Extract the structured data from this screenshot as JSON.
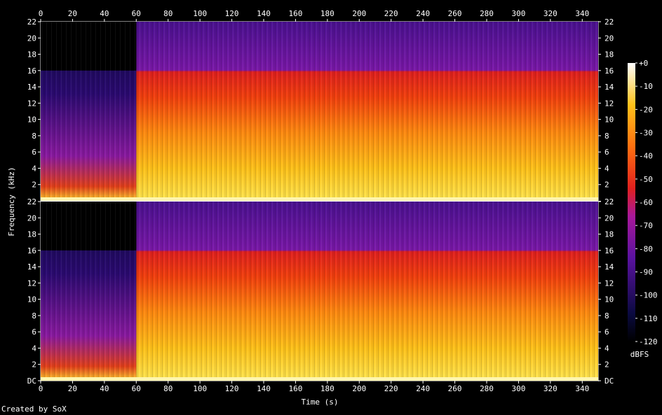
{
  "chart_data": {
    "type": "heatmap",
    "title": "",
    "xlabel": "Time (s)",
    "ylabel": "Frequency (kHz)",
    "xlim": [
      0,
      350
    ],
    "ylim": [
      0,
      22
    ],
    "x_ticks": [
      0,
      20,
      40,
      60,
      80,
      100,
      120,
      140,
      160,
      180,
      200,
      220,
      240,
      260,
      280,
      300,
      320,
      340
    ],
    "y_ticks": [
      2,
      4,
      6,
      8,
      10,
      12,
      14,
      16,
      18,
      20,
      22
    ],
    "y_zero_label": "DC",
    "channels": 2,
    "colorbar": {
      "label": "dBFS",
      "range": [
        -120,
        0
      ],
      "ticks": [
        "+0",
        "-10",
        "-20",
        "-30",
        "-40",
        "-50",
        "-60",
        "-70",
        "-80",
        "-90",
        "-100",
        "-110",
        "-120"
      ]
    },
    "regions": [
      {
        "t_start": 0,
        "t_end": 60,
        "f_low_khz": 16,
        "f_high_khz": 22,
        "level_dbfs": -120
      },
      {
        "t_start": 0,
        "t_end": 60,
        "f_low_khz": 0,
        "f_high_khz": 16,
        "level_dbfs": -85
      },
      {
        "t_start": 60,
        "t_end": 350,
        "f_low_khz": 16,
        "f_high_khz": 22,
        "level_dbfs": -95
      },
      {
        "t_start": 60,
        "t_end": 350,
        "f_low_khz": 0,
        "f_high_khz": 16,
        "level_dbfs": -45
      }
    ]
  },
  "footer": {
    "credit": "Created by SoX"
  }
}
